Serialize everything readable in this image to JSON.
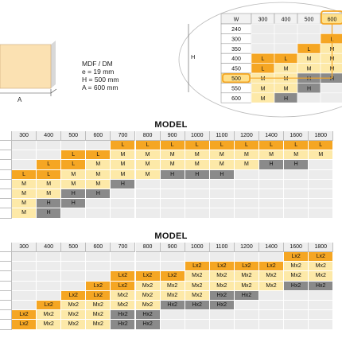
{
  "colors": {
    "L": "#f5a623",
    "M": "#fde9a8",
    "H": "#8a8a8a",
    "empty": "#ececec",
    "highlight": "#f5a623"
  },
  "drawing": {
    "dimension_label": "A",
    "specs": [
      "MDF / DM",
      "e = 19 mm",
      "H = 500 mm",
      "A = 600 mm"
    ]
  },
  "inset": {
    "corner_label": "W",
    "axis_label": "H",
    "columns": [
      "300",
      "400",
      "500",
      "600"
    ],
    "selected_column": "600",
    "selected_row": "500",
    "rows": [
      {
        "label": "240",
        "cells": [
          "",
          "",
          "",
          ""
        ]
      },
      {
        "label": "300",
        "cells": [
          "",
          "",
          "",
          "L"
        ]
      },
      {
        "label": "350",
        "cells": [
          "",
          "",
          "L",
          "M"
        ]
      },
      {
        "label": "400",
        "cells": [
          "L",
          "L",
          "M",
          "M"
        ]
      },
      {
        "label": "450",
        "cells": [
          "L",
          "M",
          "M",
          "M"
        ]
      },
      {
        "label": "500",
        "cells": [
          "M",
          "M",
          "H",
          "H"
        ]
      },
      {
        "label": "550",
        "cells": [
          "M",
          "M",
          "H",
          ""
        ]
      },
      {
        "label": "600",
        "cells": [
          "M",
          "H",
          "",
          ""
        ]
      }
    ]
  },
  "tables": [
    {
      "title": "MODEL",
      "columns": [
        "300",
        "400",
        "500",
        "600",
        "700",
        "800",
        "900",
        "1000",
        "1100",
        "1200",
        "1400",
        "1600",
        "1800"
      ],
      "rows": [
        [
          "",
          "",
          "",
          "",
          "L",
          "L",
          "L",
          "L",
          "L",
          "L",
          "L",
          "L",
          "L"
        ],
        [
          "",
          "",
          "L",
          "L",
          "M",
          "M",
          "M",
          "M",
          "M",
          "M",
          "M",
          "M",
          "M"
        ],
        [
          "",
          "L",
          "L",
          "M",
          "M",
          "M",
          "M",
          "M",
          "M",
          "M",
          "H",
          "H",
          ""
        ],
        [
          "L",
          "L",
          "M",
          "M",
          "M",
          "M",
          "H",
          "H",
          "H",
          "",
          "",
          "",
          ""
        ],
        [
          "M",
          "M",
          "M",
          "M",
          "H",
          "",
          "",
          "",
          "",
          "",
          "",
          "",
          ""
        ],
        [
          "M",
          "M",
          "H",
          "H",
          "",
          "",
          "",
          "",
          "",
          "",
          "",
          "",
          ""
        ],
        [
          "M",
          "H",
          "H",
          "",
          "",
          "",
          "",
          "",
          "",
          "",
          "",
          "",
          ""
        ],
        [
          "M",
          "H",
          "",
          "",
          "",
          "",
          "",
          "",
          "",
          "",
          "",
          "",
          ""
        ]
      ]
    },
    {
      "title": "MODEL",
      "columns": [
        "300",
        "400",
        "500",
        "600",
        "700",
        "800",
        "900",
        "1000",
        "1100",
        "1200",
        "1400",
        "1600",
        "1800"
      ],
      "rows": [
        [
          "",
          "",
          "",
          "",
          "",
          "",
          "",
          "",
          "",
          "",
          "",
          "Lx2",
          "Lx2"
        ],
        [
          "",
          "",
          "",
          "",
          "",
          "",
          "",
          "Lx2",
          "Lx2",
          "Lx2",
          "Lx2",
          "Mx2",
          "Mx2"
        ],
        [
          "",
          "",
          "",
          "",
          "Lx2",
          "Lx2",
          "Lx2",
          "Mx2",
          "Mx2",
          "Mx2",
          "Mx2",
          "Mx2",
          "Mx2"
        ],
        [
          "",
          "",
          "",
          "Lx2",
          "Lx2",
          "Mx2",
          "Mx2",
          "Mx2",
          "Mx2",
          "Mx2",
          "Mx2",
          "Hx2",
          "Hx2"
        ],
        [
          "",
          "",
          "Lx2",
          "Lx2",
          "Mx2",
          "Mx2",
          "Mx2",
          "Mx2",
          "Hx2",
          "Hx2",
          "",
          "",
          ""
        ],
        [
          "",
          "Lx2",
          "Mx2",
          "Mx2",
          "Mx2",
          "Mx2",
          "Hx2",
          "Hx2",
          "Hx2",
          "",
          "",
          "",
          ""
        ],
        [
          "Lx2",
          "Mx2",
          "Mx2",
          "Mx2",
          "Hx2",
          "Hx2",
          "",
          "",
          "",
          "",
          "",
          "",
          ""
        ],
        [
          "Lx2",
          "Mx2",
          "Mx2",
          "Mx2",
          "Hx2",
          "Hx2",
          "",
          "",
          "",
          "",
          "",
          "",
          ""
        ]
      ]
    }
  ]
}
